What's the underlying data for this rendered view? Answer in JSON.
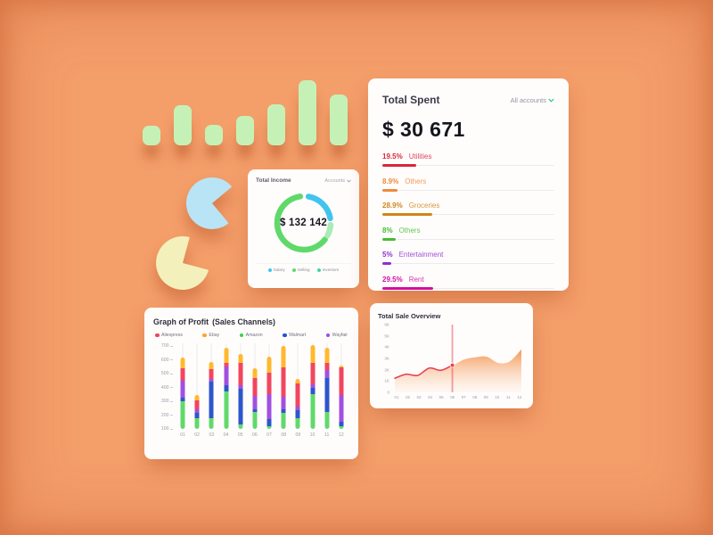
{
  "canvas": {
    "background": "#f49e6a"
  },
  "decor": {
    "bars": {
      "color": "#c6f1b6",
      "heights": [
        22,
        45,
        23,
        33,
        46,
        73,
        57
      ]
    },
    "pacman_blue": {
      "color": "#b9e4f6"
    },
    "pacman_yellow": {
      "color": "#f4f0bb"
    }
  },
  "income_card": {
    "title": "Total Income",
    "dropdown_label": "Accounts",
    "amount": "$ 132 142",
    "legend": [
      {
        "label": "Salary",
        "color": "#41c4ee"
      },
      {
        "label": "Selling",
        "color": "#5fd96a"
      },
      {
        "label": "Investors",
        "color": "#3fd6a0"
      }
    ]
  },
  "spent_card": {
    "title": "Total Spent",
    "dropdown_label": "All accounts",
    "chevron_color": "#2fbf9a",
    "amount": "$ 30 671",
    "categories": [
      {
        "pct": "19.5%",
        "value": 19.5,
        "label": "Utilities",
        "color": "#d7263d"
      },
      {
        "pct": "8.9%",
        "value": 8.9,
        "label": "Others",
        "color": "#ee8a3c"
      },
      {
        "pct": "28.9%",
        "value": 28.9,
        "label": "Groceries",
        "color": "#cf861a"
      },
      {
        "pct": "8%",
        "value": 8,
        "label": "Others",
        "color": "#44bd32"
      },
      {
        "pct": "5%",
        "value": 5,
        "label": "Entertainment",
        "color": "#8e2fd0"
      },
      {
        "pct": "29.5%",
        "value": 29.5,
        "label": "Rent",
        "color": "#d110a5"
      }
    ]
  },
  "profit_card": {
    "title": "Graph of Profit",
    "subtitle": "(Sales Channels)",
    "legend": [
      {
        "label": "Aliexpress",
        "color": "#f0435f"
      },
      {
        "label": "Ebay",
        "color": "#ffa22e"
      },
      {
        "label": "Amazon",
        "color": "#35d44a"
      },
      {
        "label": "Walmart",
        "color": "#2451d6"
      },
      {
        "label": "Wayfair",
        "color": "#9b4fe0"
      }
    ]
  },
  "sales_card": {
    "title": "Total Sale Overview"
  },
  "chart_data": [
    {
      "id": "income-donut",
      "type": "pie",
      "title": "Total Income",
      "center_label": "$ 132 142",
      "legend_position": "bottom",
      "segments": [
        {
          "label": "Selling",
          "color": "#5fd96a",
          "start_deg": 128,
          "end_deg": 352
        },
        {
          "label": "Investors",
          "color": "#a9ecb5",
          "start_deg": 94,
          "end_deg": 118
        },
        {
          "label": "Salary",
          "color": "#41c4ee",
          "start_deg": 10,
          "end_deg": 80
        }
      ]
    },
    {
      "id": "profit-stacked-bars",
      "type": "bar",
      "stacked": true,
      "title": "Graph of Profit (Sales Channels)",
      "categories": [
        "01",
        "02",
        "03",
        "04",
        "05",
        "06",
        "07",
        "08",
        "09",
        "10",
        "11",
        "12"
      ],
      "baseline": 100,
      "ylim": [
        100,
        720
      ],
      "yticks": [
        100,
        200,
        300,
        400,
        500,
        600,
        700
      ],
      "grid": "vertical",
      "legend_position": "top",
      "series": [
        {
          "name": "Amazon",
          "color": "#61d96b",
          "values": [
            200,
            80,
            75,
            270,
            35,
            120,
            20,
            115,
            75,
            250,
            125,
            20
          ]
        },
        {
          "name": "Walmart",
          "color": "#2d56cc",
          "values": [
            25,
            35,
            265,
            50,
            255,
            25,
            50,
            30,
            60,
            45,
            245,
            35
          ]
        },
        {
          "name": "Wayfair",
          "color": "#a14fe0",
          "values": [
            125,
            25,
            25,
            135,
            25,
            95,
            180,
            85,
            25,
            25,
            55,
            190
          ]
        },
        {
          "name": "Aliexpress",
          "color": "#f2455f",
          "values": [
            90,
            70,
            65,
            25,
            160,
            130,
            160,
            215,
            170,
            155,
            55,
            200
          ]
        },
        {
          "name": "Ebay",
          "color": "#ffb92e",
          "values": [
            75,
            35,
            55,
            105,
            70,
            70,
            115,
            155,
            30,
            130,
            110,
            15
          ]
        }
      ]
    },
    {
      "id": "sales-area",
      "type": "area",
      "title": "Total Sale Overview",
      "x": [
        "01",
        "02",
        "03",
        "04",
        "05",
        "06",
        "07",
        "08",
        "09",
        "10",
        "11",
        "12"
      ],
      "area_values": [
        1.2,
        1.5,
        1.45,
        2.05,
        1.9,
        2.35,
        2.9,
        3.1,
        3.15,
        2.6,
        2.75,
        3.8
      ],
      "line_values": [
        1.25,
        1.6,
        1.5,
        2.15,
        1.95,
        2.4
      ],
      "marker_index": 5,
      "yticks": [
        "0",
        "1K",
        "2K",
        "3K",
        "4K",
        "5K",
        "6K"
      ],
      "ylim": [
        0,
        6
      ],
      "grid": "off",
      "area_color": "#f3914b",
      "line_color": "#e8404f"
    },
    {
      "id": "spent-progress",
      "type": "bar",
      "title": "Total Spent",
      "categories": [
        "Utilities",
        "Others",
        "Groceries",
        "Others",
        "Entertainment",
        "Rent"
      ],
      "values": [
        19.5,
        8.9,
        28.9,
        8,
        5,
        29.5
      ],
      "unit": "%",
      "total_label": "$ 30 671"
    }
  ]
}
